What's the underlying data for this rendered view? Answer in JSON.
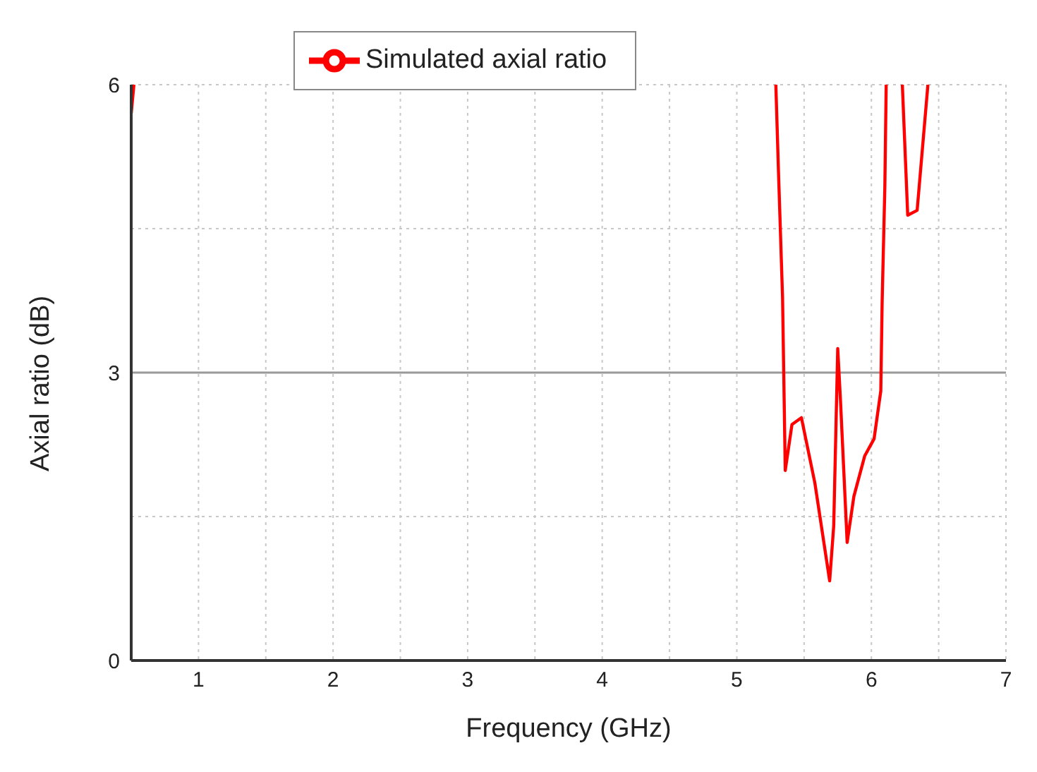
{
  "chart_data": {
    "type": "line",
    "xlabel": "Frequency (GHz)",
    "ylabel": "Axial ratio (dB)",
    "x": [
      0.5,
      0.52,
      0.6,
      5.29,
      5.31,
      5.34,
      5.36,
      5.41,
      5.48,
      5.58,
      5.69,
      5.72,
      5.75,
      5.77,
      5.82,
      5.87,
      5.95,
      6.02,
      6.07,
      6.08,
      6.1,
      6.11,
      6.17,
      6.23,
      6.27,
      6.34,
      6.42
    ],
    "series": [
      {
        "name": "Simulated axial ratio",
        "color": "#ff0000",
        "values": [
          5.7,
          6,
          null,
          6,
          5.08,
          3.78,
          1.98,
          2.46,
          2.53,
          1.85,
          0.83,
          1.4,
          3.25,
          2.72,
          1.23,
          1.71,
          2.13,
          2.31,
          2.81,
          3.74,
          4.93,
          6,
          null,
          6,
          4.64,
          4.69,
          6
        ]
      }
    ],
    "xlim": [
      0.5,
      7
    ],
    "xticks": [
      1,
      {
        "value": 1.5,
        "label": null
      },
      2,
      {
        "value": 2.5,
        "label": null
      },
      3,
      {
        "value": 3.5,
        "label": null
      },
      4,
      {
        "value": 4.5,
        "label": null
      },
      5,
      {
        "value": 5.5,
        "label": null
      },
      6,
      {
        "value": 6.5,
        "label": null
      },
      7
    ],
    "ylim": [
      0,
      6
    ],
    "yticks": [
      0,
      {
        "value": 1.5,
        "label": null
      },
      3,
      {
        "value": 4.5,
        "label": null
      },
      6
    ],
    "ref_lines": [
      {
        "axis": "y",
        "value": 3,
        "color": "#999999",
        "line_style": "solid"
      }
    ],
    "grid": true,
    "legend": "top",
    "marker": "none",
    "line_style": "solid"
  }
}
